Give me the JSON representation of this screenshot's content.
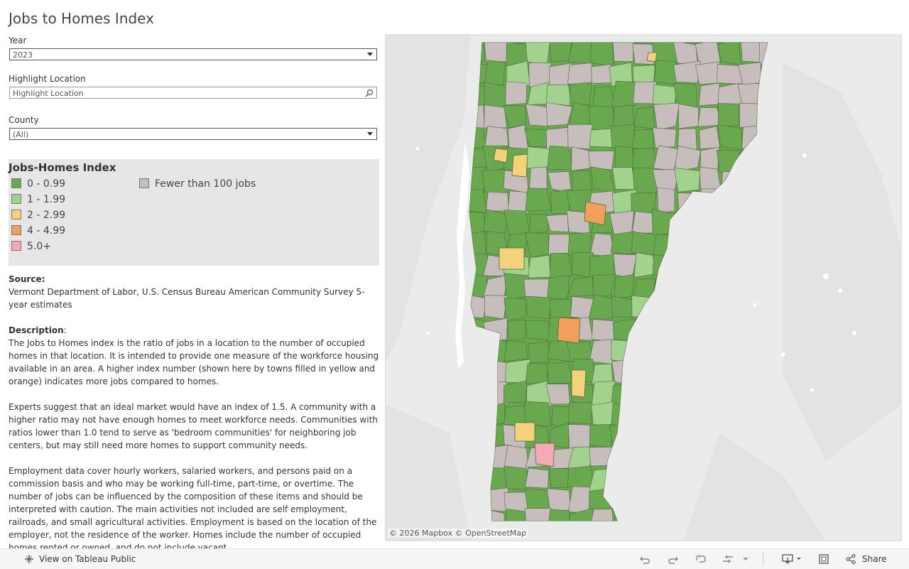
{
  "title": "Jobs to Homes Index",
  "filters": {
    "year_label": "Year",
    "year_value": "2023",
    "highlight_label": "Highlight Location",
    "highlight_placeholder": "Highlight Location",
    "county_label": "County",
    "county_value": "(All)"
  },
  "legend": {
    "title": "Jobs-Homes Index",
    "items": [
      {
        "label": "0 - 0.99",
        "color": "#6aa84f"
      },
      {
        "label": "1 - 1.99",
        "color": "#a3d28e"
      },
      {
        "label": "2 - 2.99",
        "color": "#f2d27b"
      },
      {
        "label": "4 - 4.99",
        "color": "#f0a05a"
      },
      {
        "label": "5.0+",
        "color": "#f4a9b4"
      },
      {
        "label": "Fewer than 100 jobs",
        "color": "#c7bdbd"
      }
    ]
  },
  "source": {
    "label": "Source:",
    "text": "Vermont Department of Labor, U.S. Census Bureau American Community Survey 5-year estimates"
  },
  "description": {
    "label": "Description",
    "p1": "The Jobs to Homes index is the ratio of jobs in a location to the number of occupied homes in that location. It is intended to provide one measure of the workforce housing available in an area. A higher index number (shown here by towns filled in yellow and orange) indicates more jobs compared to homes.",
    "p2": "Experts suggest that an ideal market would have an index of 1.5. A community with a higher ratio may not have enough homes to meet workforce needs. Communities with ratios lower than 1.0 tend to serve as 'bedroom communities' for neighboring job centers, but may still need more homes to support community needs.",
    "p3": "Employment data cover hourly workers, salaried workers, and persons paid on a commission basis and who may be working full-time, part-time, or overtime. The number of jobs can be influenced by the composition of these items and should be interpreted with caution. The main activities not included are self employment, railroads, and small agricultural activities. Employment is based on the location of the employer, not the residence of the worker. Homes include the number of occupied homes rented or owned, and do not include vacant"
  },
  "map": {
    "attribution": "© 2026 Mapbox  © OpenStreetMap"
  },
  "toolbar": {
    "view_label": "View on Tableau Public",
    "share_label": "Share"
  }
}
